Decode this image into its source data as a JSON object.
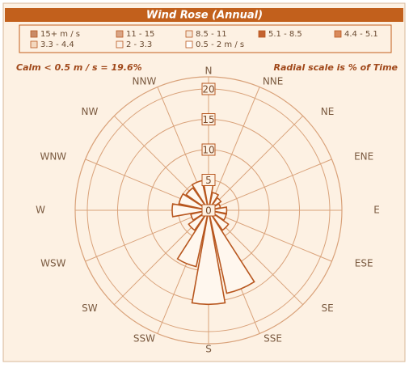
{
  "chart_data": {
    "type": "windrose",
    "title": "Wind Rose  (Annual)",
    "legend": [
      {
        "name": "15+ m / s",
        "color": "#c98a66"
      },
      {
        "name": "11 - 15",
        "color": "#d9a586"
      },
      {
        "name": "8.5 - 11",
        "color": "#f6e6d6"
      },
      {
        "name": "5.1 - 8.5",
        "color": "#c4622f"
      },
      {
        "name": "4.4 - 5.1",
        "color": "#d98a5c"
      },
      {
        "name": "3.3 - 4.4",
        "color": "#f3d8bf"
      },
      {
        "name": "2 - 3.3",
        "color": "#fbf1e7"
      },
      {
        "name": "0.5 - 2 m / s",
        "color": "#ffffff"
      }
    ],
    "calm_note": "Calm  <  0.5 m / s  =  19.6%",
    "scale_note": "Radial scale is % of Time",
    "categories": [
      "N",
      "NNE",
      "NE",
      "ENE",
      "E",
      "ESE",
      "SE",
      "SSE",
      "S",
      "SSW",
      "SW",
      "WSW",
      "W",
      "WNW",
      "NW",
      "NNW"
    ],
    "values": [
      4.6,
      3,
      2.5,
      2,
      3,
      3,
      4,
      14,
      15.5,
      9.5,
      4,
      3,
      6,
      5,
      4.5,
      5
    ],
    "rlim": [
      0,
      22
    ],
    "rticks": [
      0,
      5,
      10,
      15,
      20
    ],
    "color": "#b8571f"
  }
}
